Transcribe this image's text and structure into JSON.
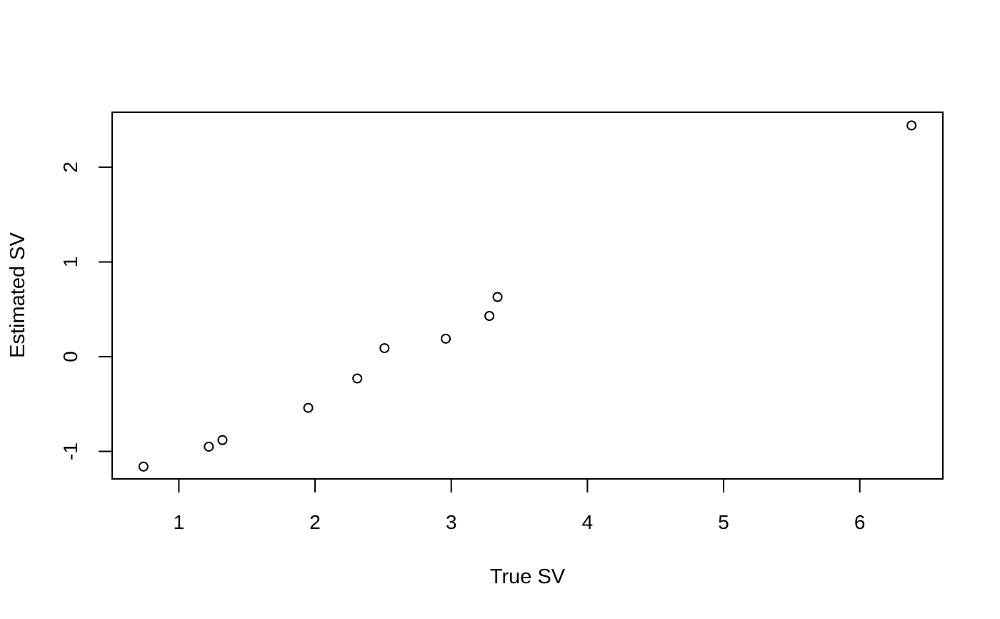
{
  "chart_data": {
    "type": "scatter",
    "title": "",
    "xlabel": "True SV",
    "ylabel": "Estimated SV",
    "xlim": [
      0.51,
      6.61
    ],
    "ylim": [
      -1.29,
      2.58
    ],
    "x_ticks": [
      1,
      2,
      3,
      4,
      5,
      6
    ],
    "x_tick_labels": [
      "1",
      "2",
      "3",
      "4",
      "5",
      "6"
    ],
    "y_ticks": [
      -1,
      0,
      1,
      2
    ],
    "y_tick_labels": [
      "-1",
      "0",
      "1",
      "2"
    ],
    "grid": false,
    "legend": "none",
    "marker": "open-circle",
    "color": "#000000",
    "x": [
      0.74,
      1.22,
      1.32,
      1.95,
      2.31,
      2.51,
      2.96,
      3.28,
      3.34,
      6.38
    ],
    "y": [
      -1.16,
      -0.95,
      -0.88,
      -0.54,
      -0.23,
      0.09,
      0.19,
      0.43,
      0.63,
      2.44
    ]
  }
}
